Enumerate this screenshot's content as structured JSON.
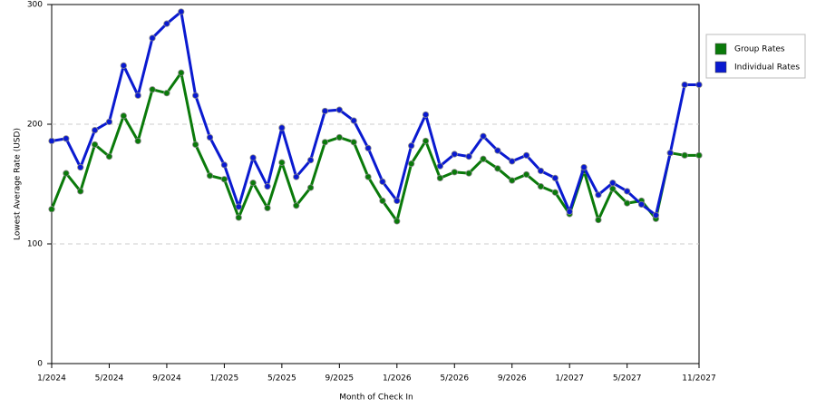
{
  "chart_data": {
    "type": "line",
    "x_label": "Month of Check In",
    "y_label": "Lowest Average Rate (USD)",
    "categories": [
      "1/2024",
      null,
      null,
      null,
      "5/2024",
      null,
      null,
      null,
      "9/2024",
      null,
      null,
      null,
      "1/2025",
      null,
      null,
      null,
      "5/2025",
      null,
      null,
      null,
      "9/2025",
      null,
      null,
      null,
      "1/2026",
      null,
      null,
      null,
      "5/2026",
      null,
      null,
      null,
      "9/2026",
      null,
      null,
      null,
      "1/2027",
      null,
      null,
      null,
      "5/2027",
      null,
      null,
      null,
      null,
      "11/2027"
    ],
    "series": [
      {
        "name": "Group Rates",
        "color": "#0a7a0a",
        "values": [
          129,
          159,
          144,
          183,
          173,
          207,
          186,
          229,
          226,
          243,
          183,
          157,
          154,
          122,
          151,
          130,
          168,
          132,
          147,
          185,
          189,
          185,
          156,
          136,
          119,
          167,
          186,
          155,
          160,
          159,
          171,
          163,
          153,
          158,
          148,
          143,
          125,
          161,
          120,
          146,
          134,
          136,
          121,
          176,
          174,
          174
        ]
      },
      {
        "name": "Individual Rates",
        "color": "#0a1ad0",
        "values": [
          186,
          188,
          164,
          195,
          202,
          249,
          224,
          272,
          284,
          294,
          224,
          189,
          166,
          131,
          172,
          148,
          197,
          156,
          170,
          211,
          212,
          203,
          180,
          152,
          136,
          182,
          208,
          165,
          175,
          173,
          190,
          178,
          169,
          174,
          161,
          155,
          127,
          164,
          141,
          151,
          144,
          133,
          124,
          176,
          233,
          233
        ]
      }
    ],
    "ylim": [
      0,
      300
    ],
    "yticks": [
      0,
      100,
      200,
      300
    ],
    "grid": true,
    "legend": "right"
  }
}
